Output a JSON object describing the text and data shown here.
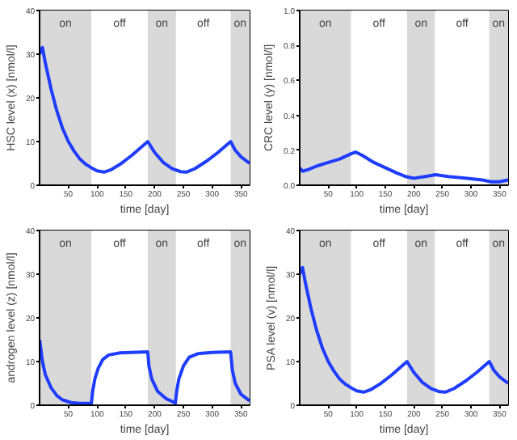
{
  "chart_data": [
    {
      "type": "line",
      "xlabel": "time [day]",
      "ylabel": "HSC level (x) [nmol/l]",
      "xlim": [
        0,
        365
      ],
      "xticks": [
        50,
        100,
        150,
        200,
        250,
        300,
        350
      ],
      "ylim": [
        0,
        40
      ],
      "yticks": [
        0,
        10,
        20,
        30,
        40
      ],
      "grid": false,
      "bands": [
        {
          "axis": "x",
          "from": 0,
          "to": 90,
          "label": "on",
          "color": "#d9d9d9"
        },
        {
          "axis": "x",
          "from": 90,
          "to": 188,
          "label": "off",
          "color": "#ffffff"
        },
        {
          "axis": "x",
          "from": 188,
          "to": 237,
          "label": "on",
          "color": "#d9d9d9"
        },
        {
          "axis": "x",
          "from": 237,
          "to": 332,
          "label": "off",
          "color": "#ffffff"
        },
        {
          "axis": "x",
          "from": 332,
          "to": 365,
          "label": "on",
          "color": "#d9d9d9"
        }
      ],
      "series": [
        {
          "color": "#1f3dff",
          "x": [
            0,
            5,
            10,
            20,
            30,
            40,
            50,
            60,
            70,
            80,
            90,
            100,
            112,
            125,
            140,
            160,
            175,
            188,
            200,
            215,
            230,
            245,
            255,
            270,
            290,
            310,
            332,
            340,
            350,
            365
          ],
          "values": [
            30,
            31.5,
            28,
            22,
            17,
            13,
            10,
            7.8,
            6,
            4.8,
            4,
            3.3,
            3,
            3.6,
            4.8,
            6.8,
            8.5,
            10,
            7.5,
            5.2,
            3.8,
            3.1,
            3,
            3.8,
            5.5,
            7.5,
            10,
            8,
            6.5,
            5
          ]
        }
      ]
    },
    {
      "type": "line",
      "xlabel": "time [day]",
      "ylabel": "CRC level (y) [nmol/l]",
      "xlim": [
        0,
        365
      ],
      "xticks": [
        50,
        100,
        150,
        200,
        250,
        300,
        350
      ],
      "ylim": [
        0,
        1
      ],
      "yticks": [
        {
          "value": 0,
          "label": "0.0"
        },
        0.2,
        0.4,
        0.6,
        0.8,
        {
          "value": 1,
          "label": "1.0"
        }
      ],
      "grid": false,
      "bands": [
        {
          "axis": "x",
          "from": 0,
          "to": 90,
          "label": "on",
          "color": "#d9d9d9"
        },
        {
          "axis": "x",
          "from": 90,
          "to": 188,
          "label": "off",
          "color": "#ffffff"
        },
        {
          "axis": "x",
          "from": 188,
          "to": 237,
          "label": "on",
          "color": "#d9d9d9"
        },
        {
          "axis": "x",
          "from": 237,
          "to": 332,
          "label": "off",
          "color": "#ffffff"
        },
        {
          "axis": "x",
          "from": 332,
          "to": 365,
          "label": "on",
          "color": "#d9d9d9"
        }
      ],
      "series": [
        {
          "color": "#1f3dff",
          "x": [
            0,
            5,
            15,
            30,
            50,
            70,
            90,
            98,
            110,
            130,
            150,
            170,
            185,
            200,
            220,
            238,
            260,
            290,
            320,
            335,
            350,
            365
          ],
          "values": [
            0.1,
            0.08,
            0.09,
            0.11,
            0.13,
            0.15,
            0.18,
            0.19,
            0.17,
            0.13,
            0.1,
            0.07,
            0.05,
            0.04,
            0.05,
            0.06,
            0.05,
            0.04,
            0.03,
            0.02,
            0.02,
            0.03
          ]
        }
      ]
    },
    {
      "type": "line",
      "xlabel": "time [day]",
      "ylabel": "androgen level (z) [nmol/l]",
      "xlim": [
        0,
        365
      ],
      "xticks": [
        50,
        100,
        150,
        200,
        250,
        300,
        350
      ],
      "ylim": [
        0,
        40
      ],
      "yticks": [
        0,
        10,
        20,
        30,
        40
      ],
      "grid": false,
      "bands": [
        {
          "axis": "x",
          "from": 0,
          "to": 90,
          "label": "on",
          "color": "#d9d9d9"
        },
        {
          "axis": "x",
          "from": 90,
          "to": 188,
          "label": "off",
          "color": "#ffffff"
        },
        {
          "axis": "x",
          "from": 188,
          "to": 237,
          "label": "on",
          "color": "#d9d9d9"
        },
        {
          "axis": "x",
          "from": 237,
          "to": 332,
          "label": "off",
          "color": "#ffffff"
        },
        {
          "axis": "x",
          "from": 332,
          "to": 365,
          "label": "on",
          "color": "#d9d9d9"
        }
      ],
      "series": [
        {
          "color": "#1f3dff",
          "x": [
            0,
            5,
            10,
            20,
            30,
            40,
            55,
            70,
            90,
            92,
            96,
            102,
            110,
            120,
            140,
            188,
            190,
            195,
            205,
            220,
            236,
            238,
            242,
            250,
            260,
            275,
            300,
            332,
            335,
            340,
            350,
            365
          ],
          "values": [
            15,
            10,
            7,
            4,
            2.2,
            1.2,
            0.6,
            0.4,
            0.4,
            3,
            6,
            8.5,
            10.5,
            11.5,
            12,
            12.2,
            9,
            6,
            3.2,
            1.5,
            0.5,
            3,
            6,
            9,
            11,
            11.8,
            12.1,
            12.2,
            8,
            5,
            2.5,
            1
          ]
        }
      ]
    },
    {
      "type": "line",
      "xlabel": "time [day]",
      "ylabel": "PSA level (v) [nmol/l]",
      "xlim": [
        0,
        365
      ],
      "xticks": [
        50,
        100,
        150,
        200,
        250,
        300,
        350
      ],
      "ylim": [
        0,
        40
      ],
      "yticks": [
        0,
        10,
        20,
        30,
        40
      ],
      "grid": false,
      "bands": [
        {
          "axis": "x",
          "from": 0,
          "to": 90,
          "label": "on",
          "color": "#d9d9d9"
        },
        {
          "axis": "x",
          "from": 90,
          "to": 188,
          "label": "off",
          "color": "#ffffff"
        },
        {
          "axis": "x",
          "from": 188,
          "to": 237,
          "label": "on",
          "color": "#d9d9d9"
        },
        {
          "axis": "x",
          "from": 237,
          "to": 332,
          "label": "off",
          "color": "#ffffff"
        },
        {
          "axis": "x",
          "from": 332,
          "to": 365,
          "label": "on",
          "color": "#d9d9d9"
        }
      ],
      "series": [
        {
          "color": "#1f3dff",
          "x": [
            0,
            5,
            10,
            20,
            30,
            40,
            50,
            60,
            70,
            80,
            90,
            100,
            112,
            125,
            140,
            160,
            175,
            188,
            200,
            215,
            230,
            245,
            255,
            270,
            290,
            310,
            332,
            340,
            350,
            365
          ],
          "values": [
            30,
            31.5,
            28,
            22,
            17,
            13,
            10,
            7.8,
            6,
            4.8,
            4,
            3.3,
            3,
            3.6,
            4.8,
            6.8,
            8.5,
            10,
            7.5,
            5.2,
            3.8,
            3.1,
            3,
            3.8,
            5.5,
            7.5,
            10,
            8,
            6.5,
            5
          ]
        }
      ]
    }
  ]
}
